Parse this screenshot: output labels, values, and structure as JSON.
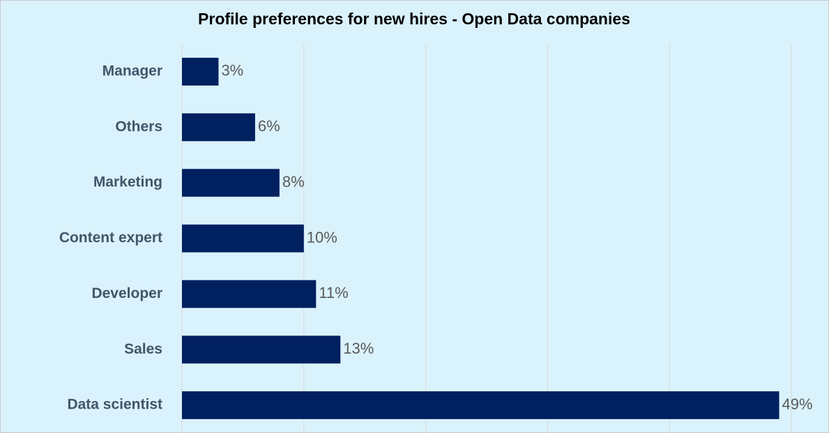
{
  "chart_data": {
    "type": "bar",
    "orientation": "horizontal",
    "title": "Profile preferences for new hires - Open Data companies",
    "categories": [
      "Manager",
      "Others",
      "Marketing",
      "Content expert",
      "Developer",
      "Sales",
      "Data scientist"
    ],
    "values": [
      3,
      6,
      8,
      10,
      11,
      13,
      49
    ],
    "value_labels": [
      "3%",
      "6%",
      "8%",
      "10%",
      "11%",
      "13%",
      "49%"
    ],
    "color": "#002060",
    "xlim": [
      0,
      50
    ],
    "xticks": [
      0,
      10,
      20,
      30,
      40,
      50
    ],
    "grid": true
  }
}
